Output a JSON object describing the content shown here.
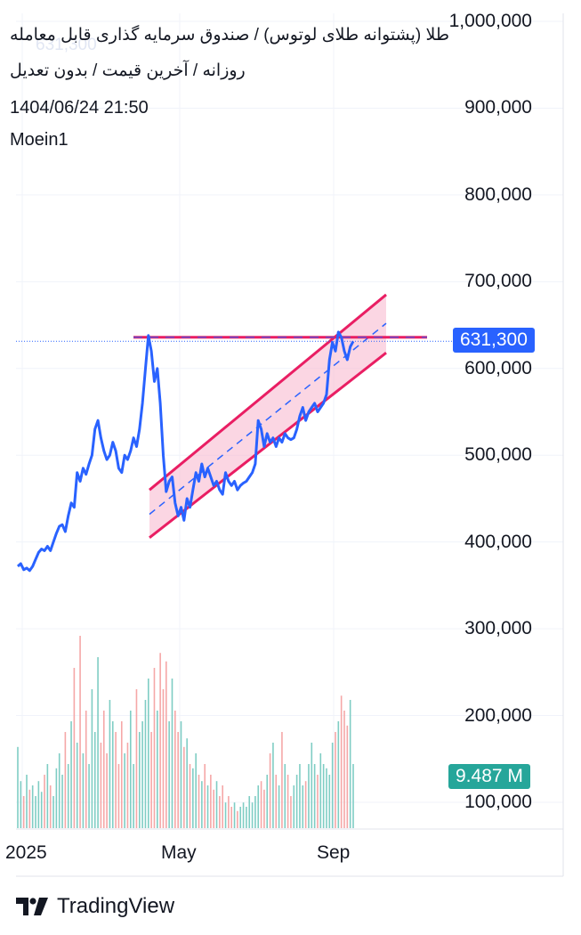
{
  "header": {
    "title": "طلا (پشتوانه طلای لوتوس) / صندوق سرمایه گذاری قابل معامله",
    "subtitle": "روزانه / آخرین قیمت / بدون تعدیل",
    "datetime": "1404/06/24 21:50",
    "author": "Moein1"
  },
  "price_badge": "631,300",
  "volume_badge": "9.487 M",
  "brand": {
    "name": "TradingView",
    "logo_icon": "tradingview-logo-icon"
  },
  "colors": {
    "price_line": "#2962ff",
    "channel_border": "#e91e63",
    "channel_fill": "#f8bbd0",
    "volume_up": "#7fcdc4",
    "volume_down": "#f5a7a7",
    "volume_badge": "#26a69a"
  },
  "chart_data": {
    "type": "line",
    "y_axis": {
      "ticks": [
        "100,000",
        "200,000",
        "300,000",
        "400,000",
        "500,000",
        "600,000",
        "700,000",
        "800,000",
        "900,000",
        "1,000,000"
      ],
      "range": [
        80000,
        1010000
      ]
    },
    "x_axis": {
      "ticks": [
        "2025",
        "May",
        "Sep"
      ]
    },
    "last_price": 631300,
    "series": [
      {
        "values": [
          372000,
          375000,
          368000,
          370000,
          367000,
          372000,
          380000,
          388000,
          392000,
          390000,
          395000,
          390000,
          400000,
          410000,
          418000,
          420000,
          412000,
          430000,
          445000,
          440000,
          480000,
          470000,
          485000,
          478000,
          490000,
          500000,
          530000,
          540000,
          520000,
          505000,
          495000,
          500000,
          515000,
          505000,
          485000,
          480000,
          500000,
          495000,
          505000,
          520000,
          510000,
          530000,
          560000,
          600000,
          638000,
          620000,
          585000,
          600000,
          560000,
          500000,
          458000,
          470000,
          475000,
          445000,
          430000,
          440000,
          425000,
          450000,
          440000,
          460000,
          480000,
          470000,
          490000,
          475000,
          485000,
          475000,
          465000,
          470000,
          460000,
          455000,
          480000,
          470000,
          465000,
          470000,
          460000,
          465000,
          468000,
          470000,
          475000,
          480000,
          490000,
          540000,
          530000,
          510000,
          525000,
          515000,
          520000,
          510000,
          520000,
          515000,
          525000,
          520000,
          518000,
          520000,
          530000,
          545000,
          555000,
          540000,
          550000,
          555000,
          560000,
          550000,
          555000,
          560000,
          570000,
          610000,
          630000,
          620000,
          642000,
          636000,
          620000,
          610000,
          625000,
          631300
        ]
      }
    ],
    "volume": {
      "values": [
        0.38,
        0.22,
        0.15,
        0.25,
        0.18,
        0.2,
        0.15,
        0.22,
        0.17,
        0.25,
        0.3,
        0.2,
        0.15,
        0.28,
        0.35,
        0.25,
        0.45,
        0.3,
        0.5,
        0.75,
        0.4,
        0.9,
        0.35,
        0.55,
        0.3,
        0.65,
        0.45,
        0.8,
        0.4,
        0.55,
        0.35,
        0.6,
        0.5,
        0.45,
        0.3,
        0.5,
        0.35,
        0.4,
        0.55,
        0.3,
        0.65,
        0.45,
        0.5,
        0.6,
        0.7,
        0.45,
        0.75,
        0.55,
        0.82,
        0.65,
        0.78,
        0.5,
        0.7,
        0.55,
        0.45,
        0.5,
        0.38,
        0.42,
        0.3,
        0.28,
        0.35,
        0.25,
        0.22,
        0.3,
        0.2,
        0.25,
        0.18,
        0.22,
        0.15,
        0.2,
        0.12,
        0.15,
        0.1,
        0.12,
        0.08,
        0.1,
        0.12,
        0.1,
        0.15,
        0.12,
        0.15,
        0.2,
        0.22,
        0.18,
        0.25,
        0.35,
        0.4,
        0.25,
        0.2,
        0.45,
        0.3,
        0.25,
        0.15,
        0.2,
        0.25,
        0.3,
        0.2,
        0.22,
        0.3,
        0.4,
        0.3,
        0.25,
        0.35,
        0.3,
        0.28,
        0.25,
        0.4,
        0.45,
        0.5,
        0.62,
        0.55,
        0.48,
        0.6,
        0.3
      ]
    },
    "annotations": {
      "resistance_line": 636000,
      "channel": {
        "upper": [
          460000,
          685000
        ],
        "lower": [
          405000,
          618000
        ],
        "mid": [
          432000,
          652000
        ]
      }
    }
  }
}
